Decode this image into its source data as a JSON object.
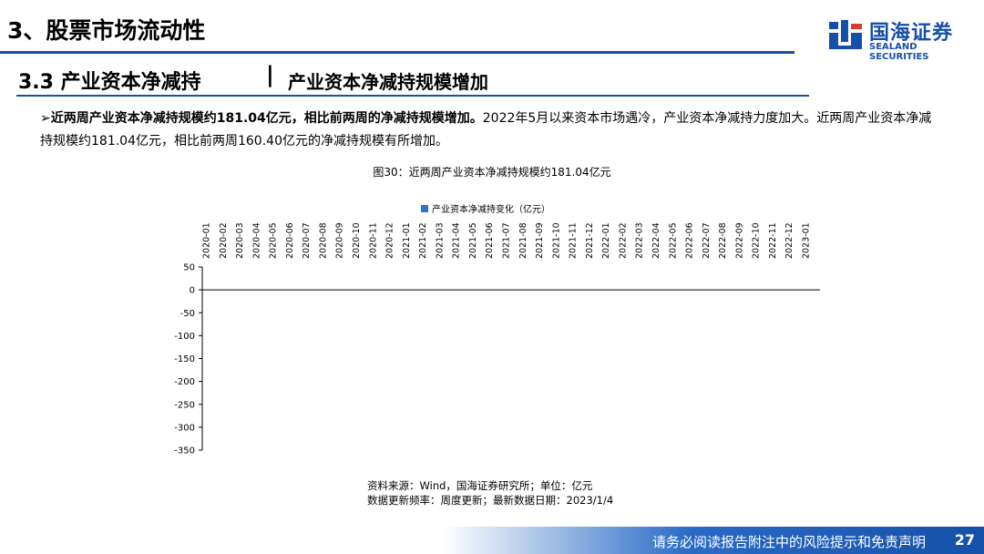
{
  "header": {
    "title": "3、股票市场流动性"
  },
  "brand": {
    "name_cn": "国海证券",
    "name_en": "SEALAND SECURITIES"
  },
  "section": {
    "title": "3.3 产业资本净减持",
    "separator": "|",
    "subtitle": "产业资本净减持规模增加"
  },
  "bullet": {
    "lead": "近两周产业资本净减持规模约181.04亿元，相比前两周的净减持规模增加。",
    "body": "2022年5月以来资本市场遇冷，产业资本净减持力度加大。近两周产业资本净减持规模约181.04亿元，相比前两周160.40亿元的净减持规模有所增加。"
  },
  "figure": {
    "caption": "图30：近两周产业资本净减持规模约181.04亿元"
  },
  "chart_data": {
    "type": "bar",
    "legend": "产业资本净减持变化（亿元）",
    "series_color": "#2e75c9",
    "ylim": [
      -350,
      50
    ],
    "yticks": [
      50,
      0,
      -50,
      -100,
      -150,
      -200,
      -250,
      -300,
      -350
    ],
    "month_labels": [
      "2020-01",
      "2020-02",
      "2020-03",
      "2020-04",
      "2020-05",
      "2020-06",
      "2020-07",
      "2020-08",
      "2020-09",
      "2020-10",
      "2020-11",
      "2020-12",
      "2021-01",
      "2021-02",
      "2021-03",
      "2021-04",
      "2021-05",
      "2021-06",
      "2021-07",
      "2021-08",
      "2021-09",
      "2021-10",
      "2021-11",
      "2021-12",
      "2022-01",
      "2022-02",
      "2022-03",
      "2022-04",
      "2022-05",
      "2022-06",
      "2022-07",
      "2022-08",
      "2022-09",
      "2022-10",
      "2022-11",
      "2022-12",
      "2023-01"
    ]
  },
  "source": {
    "line1": "资料来源：Wind，国海证券研究所；单位：亿元",
    "line2": "数据更新频率：周度更新；最新数据日期：2023/1/4"
  },
  "footer": {
    "disclaimer": "请务必阅读报告附注中的风险提示和免责声明",
    "page": "27"
  }
}
